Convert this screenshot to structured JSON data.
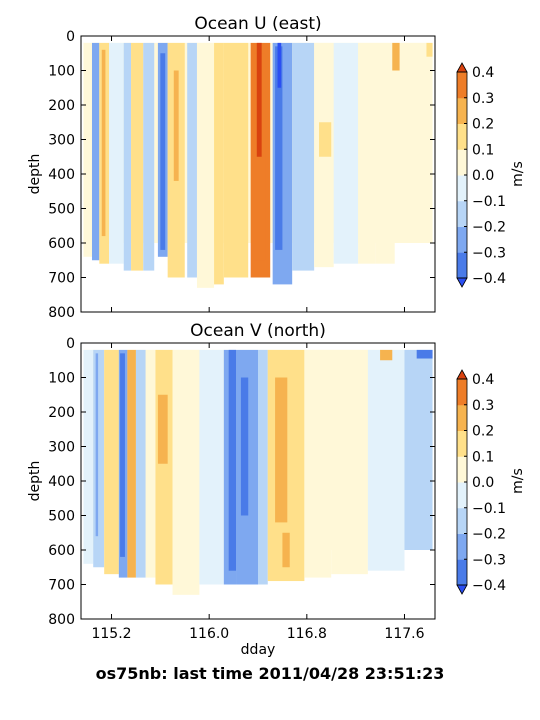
{
  "footer": "os75nb: last time 2011/04/28 23:51:23",
  "colorbar": {
    "label": "m/s",
    "levels": [
      -0.4,
      -0.3,
      -0.2,
      -0.1,
      0.0,
      0.1,
      0.2,
      0.3,
      0.4
    ],
    "tick_labels": [
      "−0.4",
      "−0.3",
      "−0.2",
      "−0.1",
      "0.0",
      "0.1",
      "0.2",
      "0.3",
      "0.4"
    ],
    "colors": [
      "#2b4ff2",
      "#4a7be8",
      "#7ea8f0",
      "#b7d5f6",
      "#e3f2fb",
      "#fff8d8",
      "#ffe08a",
      "#f6b34f",
      "#ee7d28",
      "#d9420f"
    ]
  },
  "chart_data": [
    {
      "type": "heatmap",
      "title": "Ocean U (east)",
      "xlabel": "",
      "ylabel": "depth",
      "xlim": [
        114.95,
        117.85
      ],
      "ylim": [
        800,
        0
      ],
      "yticks": [
        0,
        100,
        200,
        300,
        400,
        500,
        600,
        700,
        800
      ],
      "xticks": [
        115.2,
        116.0,
        116.8,
        117.6
      ],
      "show_xtick_labels": false,
      "base_value": 0.03,
      "columns": [
        {
          "x0": 114.97,
          "x1": 115.04,
          "v": 0.05,
          "dmax": 640
        },
        {
          "x0": 115.04,
          "x1": 115.1,
          "v": -0.22,
          "dmax": 650
        },
        {
          "x0": 115.1,
          "x1": 115.18,
          "v": 0.18,
          "dmax": 660
        },
        {
          "x0": 115.18,
          "x1": 115.3,
          "v": -0.05,
          "dmax": 660
        },
        {
          "x0": 115.3,
          "x1": 115.36,
          "v": -0.15,
          "dmax": 680
        },
        {
          "x0": 115.36,
          "x1": 115.46,
          "v": 0.1,
          "dmax": 680
        },
        {
          "x0": 115.46,
          "x1": 115.55,
          "v": -0.12,
          "dmax": 680
        },
        {
          "x0": 115.58,
          "x1": 115.66,
          "v": -0.28,
          "dmax": 640
        },
        {
          "x0": 115.66,
          "x1": 115.8,
          "v": 0.12,
          "dmax": 700
        },
        {
          "x0": 115.82,
          "x1": 115.9,
          "v": -0.17,
          "dmax": 700
        },
        {
          "x0": 115.9,
          "x1": 116.04,
          "v": 0.05,
          "dmax": 730
        },
        {
          "x0": 116.04,
          "x1": 116.12,
          "v": 0.1,
          "dmax": 720
        },
        {
          "x0": 116.12,
          "x1": 116.32,
          "v": 0.15,
          "dmax": 700
        },
        {
          "x0": 116.34,
          "x1": 116.5,
          "v": 0.32,
          "dmax": 700
        },
        {
          "x0": 116.52,
          "x1": 116.68,
          "v": -0.27,
          "dmax": 720
        },
        {
          "x0": 116.68,
          "x1": 116.86,
          "v": -0.17,
          "dmax": 680
        },
        {
          "x0": 116.86,
          "x1": 117.02,
          "v": 0.07,
          "dmax": 670
        },
        {
          "x0": 117.02,
          "x1": 117.22,
          "v": -0.04,
          "dmax": 660
        },
        {
          "x0": 117.22,
          "x1": 117.36,
          "v": 0.06,
          "dmax": 660
        },
        {
          "x0": 117.36,
          "x1": 117.52,
          "v": 0.0,
          "dmax": 660
        },
        {
          "x0": 117.52,
          "x1": 117.83,
          "v": 0.05,
          "dmax": 600
        }
      ],
      "features": [
        {
          "x0": 115.05,
          "x1": 115.08,
          "d0": 40,
          "d1": 620,
          "v": -0.3
        },
        {
          "x0": 115.12,
          "x1": 115.15,
          "d0": 40,
          "d1": 580,
          "v": 0.25
        },
        {
          "x0": 115.6,
          "x1": 115.64,
          "d0": 50,
          "d1": 620,
          "v": -0.35
        },
        {
          "x0": 115.71,
          "x1": 115.75,
          "d0": 100,
          "d1": 420,
          "v": 0.2
        },
        {
          "x0": 116.36,
          "x1": 116.46,
          "d0": 50,
          "d1": 650,
          "v": 0.37
        },
        {
          "x0": 116.39,
          "x1": 116.43,
          "d0": 20,
          "d1": 350,
          "v": 0.42
        },
        {
          "x0": 116.54,
          "x1": 116.6,
          "d0": 30,
          "d1": 620,
          "v": -0.36
        },
        {
          "x0": 116.56,
          "x1": 116.59,
          "d0": 20,
          "d1": 150,
          "v": -0.43
        },
        {
          "x0": 116.9,
          "x1": 117.0,
          "d0": 250,
          "d1": 350,
          "v": 0.18
        },
        {
          "x0": 117.5,
          "x1": 117.56,
          "d0": 20,
          "d1": 100,
          "v": 0.2
        },
        {
          "x0": 117.78,
          "x1": 117.83,
          "d0": 20,
          "d1": 60,
          "v": 0.15
        }
      ]
    },
    {
      "type": "heatmap",
      "title": "Ocean V (north)",
      "xlabel": "dday",
      "ylabel": "depth",
      "xlim": [
        114.95,
        117.85
      ],
      "ylim": [
        800,
        0
      ],
      "yticks": [
        0,
        100,
        200,
        300,
        400,
        500,
        600,
        700,
        800
      ],
      "xticks": [
        115.2,
        116.0,
        116.8,
        117.6
      ],
      "xtick_labels": [
        "115.2",
        "116.0",
        "116.8",
        "117.6"
      ],
      "show_xtick_labels": true,
      "base_value": 0.0,
      "columns": [
        {
          "x0": 114.97,
          "x1": 115.05,
          "v": -0.05,
          "dmax": 640
        },
        {
          "x0": 115.05,
          "x1": 115.14,
          "v": -0.12,
          "dmax": 650
        },
        {
          "x0": 115.14,
          "x1": 115.26,
          "v": 0.12,
          "dmax": 670
        },
        {
          "x0": 115.26,
          "x1": 115.33,
          "v": -0.22,
          "dmax": 680
        },
        {
          "x0": 115.33,
          "x1": 115.4,
          "v": 0.2,
          "dmax": 680
        },
        {
          "x0": 115.4,
          "x1": 115.48,
          "v": -0.13,
          "dmax": 680
        },
        {
          "x0": 115.48,
          "x1": 115.56,
          "v": 0.05,
          "dmax": 680
        },
        {
          "x0": 115.56,
          "x1": 115.7,
          "v": 0.1,
          "dmax": 700
        },
        {
          "x0": 115.7,
          "x1": 115.92,
          "v": 0.06,
          "dmax": 730
        },
        {
          "x0": 115.92,
          "x1": 116.12,
          "v": -0.08,
          "dmax": 700
        },
        {
          "x0": 116.12,
          "x1": 116.22,
          "v": -0.25,
          "dmax": 700
        },
        {
          "x0": 116.22,
          "x1": 116.4,
          "v": -0.22,
          "dmax": 700
        },
        {
          "x0": 116.4,
          "x1": 116.48,
          "v": -0.15,
          "dmax": 700
        },
        {
          "x0": 116.48,
          "x1": 116.78,
          "v": 0.14,
          "dmax": 690
        },
        {
          "x0": 116.78,
          "x1": 117.0,
          "v": 0.06,
          "dmax": 680
        },
        {
          "x0": 117.0,
          "x1": 117.3,
          "v": 0.03,
          "dmax": 670
        },
        {
          "x0": 117.3,
          "x1": 117.6,
          "v": -0.05,
          "dmax": 660
        },
        {
          "x0": 117.6,
          "x1": 117.83,
          "v": -0.12,
          "dmax": 600
        }
      ],
      "features": [
        {
          "x0": 115.07,
          "x1": 115.09,
          "d0": 30,
          "d1": 560,
          "v": -0.28
        },
        {
          "x0": 115.27,
          "x1": 115.31,
          "d0": 30,
          "d1": 620,
          "v": -0.32
        },
        {
          "x0": 115.35,
          "x1": 115.38,
          "d0": 30,
          "d1": 600,
          "v": 0.28
        },
        {
          "x0": 115.58,
          "x1": 115.66,
          "d0": 150,
          "d1": 350,
          "v": 0.2
        },
        {
          "x0": 116.16,
          "x1": 116.22,
          "d0": 20,
          "d1": 660,
          "v": -0.36
        },
        {
          "x0": 116.26,
          "x1": 116.32,
          "d0": 100,
          "d1": 500,
          "v": -0.32
        },
        {
          "x0": 116.54,
          "x1": 116.64,
          "d0": 100,
          "d1": 520,
          "v": 0.22
        },
        {
          "x0": 116.6,
          "x1": 116.66,
          "d0": 550,
          "d1": 650,
          "v": 0.25
        },
        {
          "x0": 117.4,
          "x1": 117.5,
          "d0": 20,
          "d1": 50,
          "v": 0.2
        },
        {
          "x0": 117.7,
          "x1": 117.83,
          "d0": 20,
          "d1": 45,
          "v": -0.35
        }
      ]
    }
  ]
}
